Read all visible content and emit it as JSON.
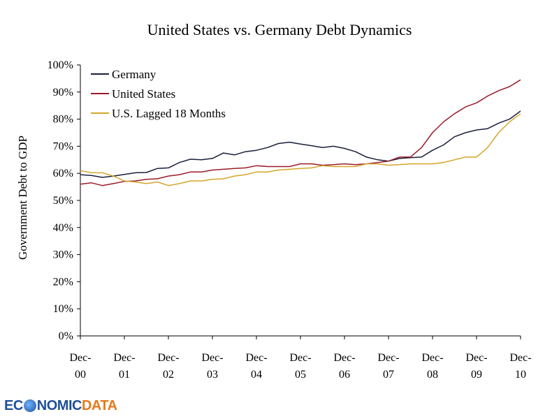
{
  "title": "United States vs. Germany Debt Dynamics",
  "logo": {
    "part1": "EC",
    "part2": "NOMIC",
    "part3": "DATA"
  },
  "colors": {
    "germany": "#1a1f3a",
    "united_states": "#9b1b2a",
    "us_lagged": "#d4a52a",
    "axis": "#000000"
  },
  "chart_data": {
    "type": "line",
    "title": "United States vs. Germany Debt Dynamics",
    "xlabel": "",
    "ylabel": "Government Debt to GDP",
    "ylim": [
      0,
      100
    ],
    "y_ticks": [
      "0%",
      "10%",
      "20%",
      "30%",
      "40%",
      "50%",
      "60%",
      "70%",
      "80%",
      "90%",
      "100%"
    ],
    "x_ticks": [
      {
        "line1": "Dec-",
        "line2": "00"
      },
      {
        "line1": "Dec-",
        "line2": "01"
      },
      {
        "line1": "Dec-",
        "line2": "02"
      },
      {
        "line1": "Dec-",
        "line2": "03"
      },
      {
        "line1": "Dec-",
        "line2": "04"
      },
      {
        "line1": "Dec-",
        "line2": "05"
      },
      {
        "line1": "Dec-",
        "line2": "06"
      },
      {
        "line1": "Dec-",
        "line2": "07"
      },
      {
        "line1": "Dec-",
        "line2": "08"
      },
      {
        "line1": "Dec-",
        "line2": "09"
      },
      {
        "line1": "Dec-",
        "line2": "10"
      }
    ],
    "x": [
      "Dec-00",
      "Mar-01",
      "Jun-01",
      "Sep-01",
      "Dec-01",
      "Mar-02",
      "Jun-02",
      "Sep-02",
      "Dec-02",
      "Mar-03",
      "Jun-03",
      "Sep-03",
      "Dec-03",
      "Mar-04",
      "Jun-04",
      "Sep-04",
      "Dec-04",
      "Mar-05",
      "Jun-05",
      "Sep-05",
      "Dec-05",
      "Mar-06",
      "Jun-06",
      "Sep-06",
      "Dec-06",
      "Mar-07",
      "Jun-07",
      "Sep-07",
      "Dec-07",
      "Mar-08",
      "Jun-08",
      "Sep-08",
      "Dec-08",
      "Mar-09",
      "Jun-09",
      "Sep-09",
      "Dec-09",
      "Mar-10",
      "Jun-10",
      "Sep-10",
      "Dec-10"
    ],
    "legend_position": "top-left",
    "grid": false,
    "series": [
      {
        "name": "Germany",
        "values": [
          59.5,
          59.2,
          58.5,
          59.0,
          59.6,
          60.2,
          60.3,
          61.8,
          62.0,
          64.0,
          65.2,
          65.0,
          65.5,
          67.5,
          66.8,
          68.0,
          68.5,
          69.5,
          71.0,
          71.5,
          70.8,
          70.2,
          69.5,
          70.0,
          69.2,
          68.0,
          66.0,
          65.0,
          64.5,
          65.5,
          65.8,
          66.0,
          68.5,
          70.5,
          73.5,
          75.0,
          76.0,
          76.5,
          78.5,
          80.0,
          83.0
        ]
      },
      {
        "name": "United States",
        "values": [
          56.0,
          56.5,
          55.5,
          56.2,
          57.0,
          57.2,
          57.8,
          58.0,
          59.0,
          59.5,
          60.5,
          60.5,
          61.2,
          61.5,
          61.8,
          62.0,
          62.8,
          62.5,
          62.5,
          62.5,
          63.5,
          63.5,
          63.0,
          63.2,
          63.5,
          63.2,
          63.5,
          64.0,
          64.5,
          66.0,
          66.0,
          69.5,
          75.0,
          79.0,
          82.0,
          84.5,
          86.0,
          88.5,
          90.5,
          92.0,
          94.5
        ]
      },
      {
        "name": "U.S. Lagged 18 Months",
        "values": [
          61.0,
          60.2,
          60.2,
          59.0,
          57.2,
          56.8,
          56.2,
          56.8,
          55.5,
          56.2,
          57.2,
          57.2,
          57.8,
          58.0,
          59.0,
          59.5,
          60.5,
          60.5,
          61.2,
          61.5,
          61.8,
          62.0,
          62.8,
          62.5,
          62.5,
          62.5,
          63.5,
          63.5,
          63.0,
          63.2,
          63.5,
          63.5,
          63.5,
          64.0,
          65.0,
          66.0,
          66.0,
          69.5,
          75.0,
          79.0,
          82.0
        ]
      }
    ]
  }
}
